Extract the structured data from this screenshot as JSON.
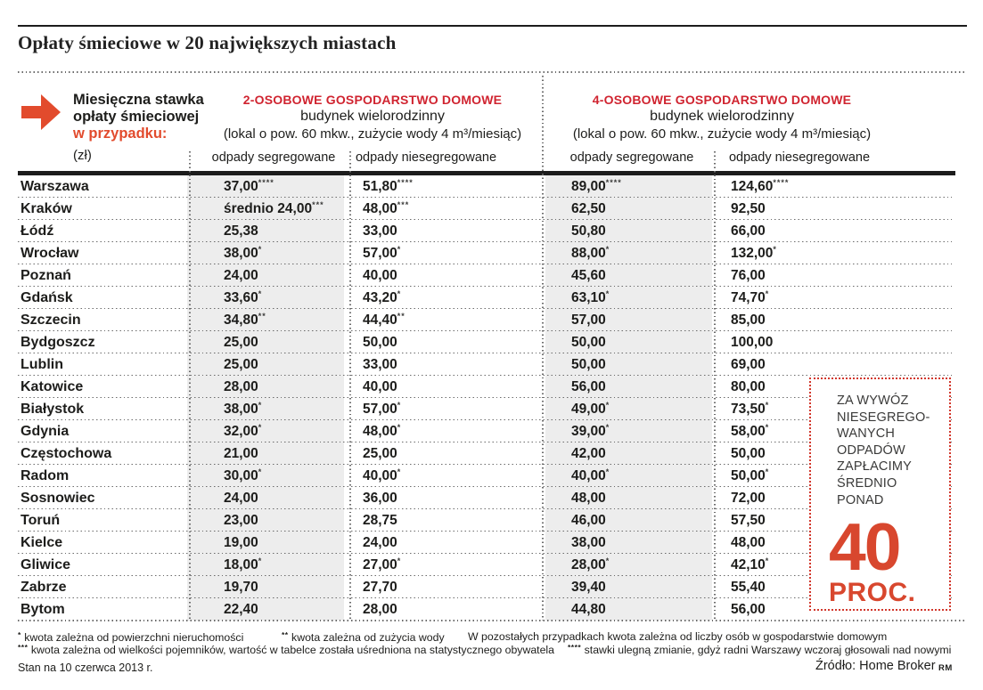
{
  "title": "Opłaty śmieciowe w 20 największych miastach",
  "header": {
    "intro": {
      "line1": "Miesięczna stawka",
      "line2": "opłaty śmieciowej",
      "line3": "w przypadku:",
      "line4": "(zł)"
    },
    "groups": [
      {
        "title": "2-OSOBOWE GOSPODARSTWO DOMOWE",
        "subtitle": "budynek wielorodzinny",
        "detail": "(lokal o pow. 60 mkw., zużycie wody 4 m³/miesiąc)",
        "col1": "odpady segregowane",
        "col2": "odpady niesegregowane"
      },
      {
        "title": "4-OSOBOWE GOSPODARSTWO DOMOWE",
        "subtitle": "budynek wielorodzinny",
        "detail": "(lokal o pow. 60 mkw., zużycie wody 4 m³/miesiąc)",
        "col1": "odpady segregowane",
        "col2": "odpady niesegregowane"
      }
    ]
  },
  "chart_data": {
    "type": "table",
    "title": "Opłaty śmieciowe w 20 największych miastach",
    "unit": "zł / miesiąc",
    "columns": [
      "miasto",
      "2-osobowe: odpady segregowane",
      "2-osobowe: odpady niesegregowane",
      "4-osobowe: odpady segregowane",
      "4-osobowe: odpady niesegregowane"
    ],
    "rows": [
      {
        "city": "Warszawa",
        "cells": [
          {
            "value": "37,00",
            "stars": 4
          },
          {
            "value": "51,80",
            "stars": 4
          },
          {
            "value": "89,00",
            "stars": 4
          },
          {
            "value": "124,60",
            "stars": 4
          }
        ]
      },
      {
        "city": "Kraków",
        "cells": [
          {
            "value": "średnio 24,00",
            "stars": 3
          },
          {
            "value": "48,00",
            "stars": 3
          },
          {
            "value": "62,50",
            "stars": 0
          },
          {
            "value": "92,50",
            "stars": 0
          }
        ]
      },
      {
        "city": "Łódź",
        "cells": [
          {
            "value": "25,38",
            "stars": 0
          },
          {
            "value": "33,00",
            "stars": 0
          },
          {
            "value": "50,80",
            "stars": 0
          },
          {
            "value": "66,00",
            "stars": 0
          }
        ]
      },
      {
        "city": "Wrocław",
        "cells": [
          {
            "value": "38,00",
            "stars": 1
          },
          {
            "value": "57,00",
            "stars": 1
          },
          {
            "value": "88,00",
            "stars": 1
          },
          {
            "value": "132,00",
            "stars": 1
          }
        ]
      },
      {
        "city": "Poznań",
        "cells": [
          {
            "value": "24,00",
            "stars": 0
          },
          {
            "value": "40,00",
            "stars": 0
          },
          {
            "value": "45,60",
            "stars": 0
          },
          {
            "value": "76,00",
            "stars": 0
          }
        ]
      },
      {
        "city": "Gdańsk",
        "cells": [
          {
            "value": "33,60",
            "stars": 1
          },
          {
            "value": "43,20",
            "stars": 1
          },
          {
            "value": "63,10",
            "stars": 1
          },
          {
            "value": "74,70",
            "stars": 1
          }
        ]
      },
      {
        "city": "Szczecin",
        "cells": [
          {
            "value": "34,80",
            "stars": 2
          },
          {
            "value": "44,40",
            "stars": 2
          },
          {
            "value": "57,00",
            "stars": 0
          },
          {
            "value": "85,00",
            "stars": 0
          }
        ]
      },
      {
        "city": "Bydgoszcz",
        "cells": [
          {
            "value": "25,00",
            "stars": 0
          },
          {
            "value": "50,00",
            "stars": 0
          },
          {
            "value": "50,00",
            "stars": 0
          },
          {
            "value": "100,00",
            "stars": 0
          }
        ]
      },
      {
        "city": "Lublin",
        "cells": [
          {
            "value": "25,00",
            "stars": 0
          },
          {
            "value": "33,00",
            "stars": 0
          },
          {
            "value": "50,00",
            "stars": 0
          },
          {
            "value": "69,00",
            "stars": 0
          }
        ]
      },
      {
        "city": "Katowice",
        "cells": [
          {
            "value": "28,00",
            "stars": 0
          },
          {
            "value": "40,00",
            "stars": 0
          },
          {
            "value": "56,00",
            "stars": 0
          },
          {
            "value": "80,00",
            "stars": 0
          }
        ]
      },
      {
        "city": "Białystok",
        "cells": [
          {
            "value": "38,00",
            "stars": 1
          },
          {
            "value": "57,00",
            "stars": 1
          },
          {
            "value": "49,00",
            "stars": 1
          },
          {
            "value": "73,50",
            "stars": 1
          }
        ]
      },
      {
        "city": "Gdynia",
        "cells": [
          {
            "value": "32,00",
            "stars": 1
          },
          {
            "value": "48,00",
            "stars": 1
          },
          {
            "value": "39,00",
            "stars": 1
          },
          {
            "value": "58,00",
            "stars": 1
          }
        ]
      },
      {
        "city": "Częstochowa",
        "cells": [
          {
            "value": "21,00",
            "stars": 0
          },
          {
            "value": "25,00",
            "stars": 0
          },
          {
            "value": "42,00",
            "stars": 0
          },
          {
            "value": "50,00",
            "stars": 0
          }
        ]
      },
      {
        "city": "Radom",
        "cells": [
          {
            "value": "30,00",
            "stars": 1
          },
          {
            "value": "40,00",
            "stars": 1
          },
          {
            "value": "40,00",
            "stars": 1
          },
          {
            "value": "50,00",
            "stars": 1
          }
        ]
      },
      {
        "city": "Sosnowiec",
        "cells": [
          {
            "value": "24,00",
            "stars": 0
          },
          {
            "value": "36,00",
            "stars": 0
          },
          {
            "value": "48,00",
            "stars": 0
          },
          {
            "value": "72,00",
            "stars": 0
          }
        ]
      },
      {
        "city": "Toruń",
        "cells": [
          {
            "value": "23,00",
            "stars": 0
          },
          {
            "value": "28,75",
            "stars": 0
          },
          {
            "value": "46,00",
            "stars": 0
          },
          {
            "value": "57,50",
            "stars": 0
          }
        ]
      },
      {
        "city": "Kielce",
        "cells": [
          {
            "value": "19,00",
            "stars": 0
          },
          {
            "value": "24,00",
            "stars": 0
          },
          {
            "value": "38,00",
            "stars": 0
          },
          {
            "value": "48,00",
            "stars": 0
          }
        ]
      },
      {
        "city": "Gliwice",
        "cells": [
          {
            "value": "18,00",
            "stars": 1
          },
          {
            "value": "27,00",
            "stars": 1
          },
          {
            "value": "28,00",
            "stars": 1
          },
          {
            "value": "42,10",
            "stars": 1
          }
        ]
      },
      {
        "city": "Zabrze",
        "cells": [
          {
            "value": "19,70",
            "stars": 0
          },
          {
            "value": "27,70",
            "stars": 0
          },
          {
            "value": "39,40",
            "stars": 0
          },
          {
            "value": "55,40",
            "stars": 0
          }
        ]
      },
      {
        "city": "Bytom",
        "cells": [
          {
            "value": "22,40",
            "stars": 0
          },
          {
            "value": "28,00",
            "stars": 0
          },
          {
            "value": "44,80",
            "stars": 0
          },
          {
            "value": "56,00",
            "stars": 0
          }
        ]
      }
    ]
  },
  "callout": {
    "lines": [
      "ZA WYWÓZ",
      "NIESEGREGO-",
      "WANYCH",
      "ODPADÓW",
      "ZAPŁACIMY",
      "ŚREDNIO",
      "PONAD"
    ],
    "big_number": "40",
    "big_label": "PROC."
  },
  "footnotes": {
    "row1": [
      {
        "marker": "*",
        "text": "kwota zależna od powierzchni nieruchomości"
      },
      {
        "marker": "**",
        "text": "kwota zależna od zużycia wody"
      },
      {
        "marker": "",
        "text": "W pozostałych przypadkach kwota zależna od liczby osób w gospodarstwie domowym"
      }
    ],
    "row2": [
      {
        "marker": "***",
        "text": "kwota zależna od wielkości pojemników, wartość w tabelce została uśredniona na statystycznego obywatela"
      },
      {
        "marker": "****",
        "text": "stawki ulegną zmianie, gdyż radni Warszawy wczoraj głosowali nad nowymi"
      }
    ]
  },
  "footer": {
    "status": "Stan na 10 czerwca 2013 r.",
    "source": "Źródło: Home Broker",
    "credit": "RM"
  },
  "colors": {
    "accent_crimson": "#d02430",
    "accent_orange_red": "#e24b2d",
    "big_number_red": "#d8472e",
    "column_shade": "#ededed",
    "text": "#1d1d1b"
  }
}
